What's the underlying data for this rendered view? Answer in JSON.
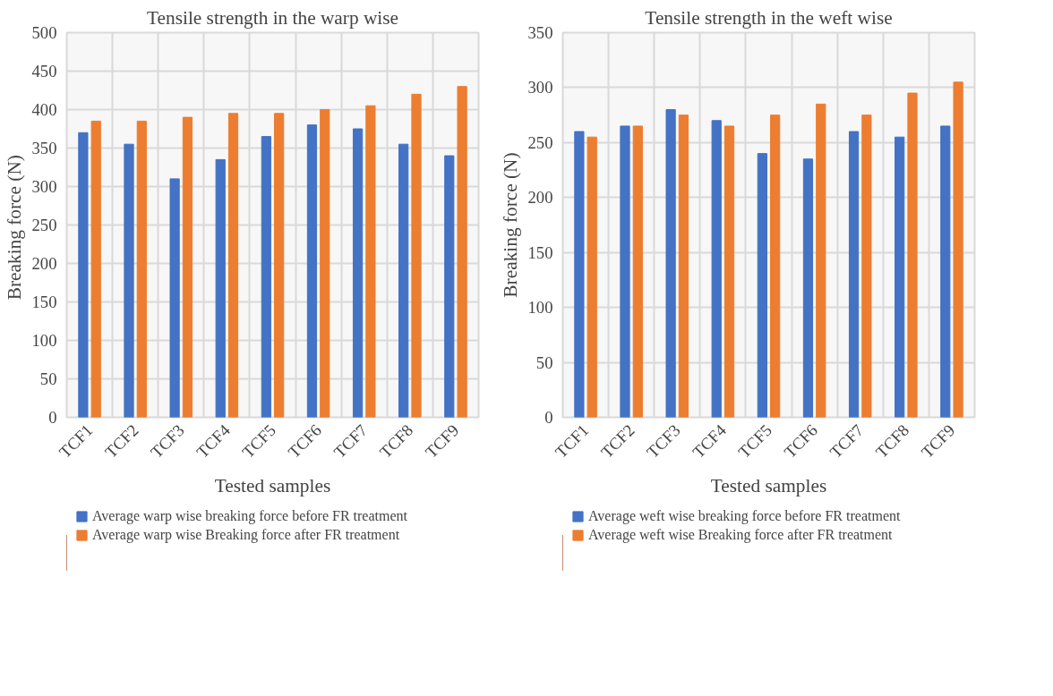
{
  "chart_data": [
    {
      "type": "bar",
      "title": "Tensile strength in the warp wise",
      "xlabel": "Tested samples",
      "ylabel": "Breaking  force (N)",
      "categories": [
        "TCF1",
        "TCF2",
        "TCF3",
        "TCF4",
        "TCF5",
        "TCF6",
        "TCF7",
        "TCF8",
        "TCF9"
      ],
      "series": [
        {
          "name": "Average warp wise breaking force before FR treatment",
          "color": "#4472c4",
          "values": [
            370,
            355,
            310,
            335,
            365,
            380,
            375,
            355,
            340
          ]
        },
        {
          "name": "Average warp wise Breaking force after FR treatment",
          "color": "#ed7d31",
          "values": [
            385,
            385,
            390,
            395,
            395,
            400,
            405,
            420,
            430
          ]
        }
      ],
      "ylim": [
        0,
        500
      ],
      "yticks": [
        0,
        50,
        100,
        150,
        200,
        250,
        300,
        350,
        400,
        450,
        500
      ],
      "grid": true,
      "legend": "bottom"
    },
    {
      "type": "bar",
      "title": "Tensile strength in the weft wise",
      "xlabel": "Tested samples",
      "ylabel": "Breaking force (N)",
      "categories": [
        "TCF1",
        "TCF2",
        "TCF3",
        "TCF4",
        "TCF5",
        "TCF6",
        "TCF7",
        "TCF8",
        "TCF9"
      ],
      "series": [
        {
          "name": "Average weft wise breaking force before FR treatment",
          "color": "#4472c4",
          "values": [
            260,
            265,
            280,
            270,
            240,
            235,
            260,
            255,
            265
          ]
        },
        {
          "name": "Average weft wise Breaking force after FR treatment",
          "color": "#ed7d31",
          "values": [
            255,
            265,
            275,
            265,
            275,
            285,
            275,
            295,
            305
          ]
        }
      ],
      "ylim": [
        0,
        350
      ],
      "yticks": [
        0,
        50,
        100,
        150,
        200,
        250,
        300,
        350
      ],
      "grid": true,
      "legend": "bottom"
    }
  ]
}
